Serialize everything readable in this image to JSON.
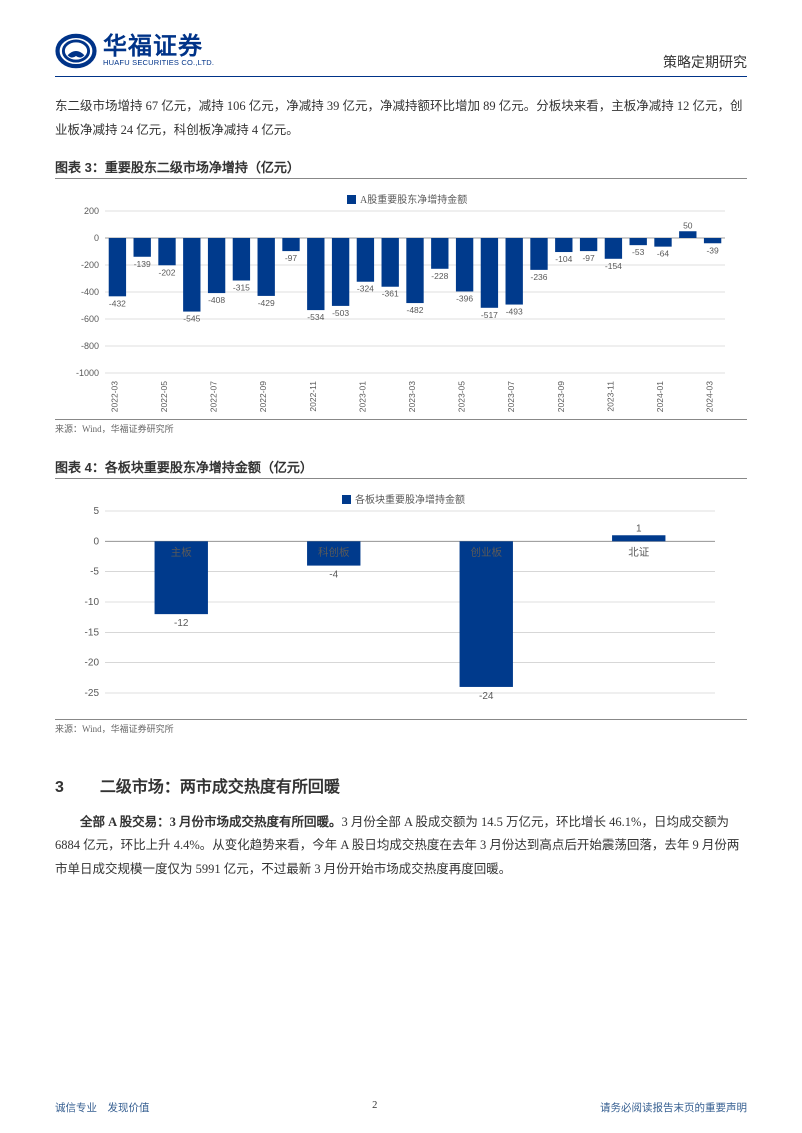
{
  "header": {
    "logo_cn": "华福证券",
    "logo_en": "HUAFU SECURITIES CO.,LTD.",
    "right": "策略定期研究"
  },
  "para1": "东二级市场增持 67 亿元，减持 106 亿元，净减持 39 亿元，净减持额环比增加 89 亿元。分板块来看，主板净减持 12 亿元，创业板净减持 24 亿元，科创板净减持 4 亿元。",
  "chart3": {
    "title": "图表 3：重要股东二级市场净增持（亿元）",
    "legend": "A股重要股东净增持金额",
    "type": "bar",
    "categories": [
      "2022-03",
      "2022-05",
      "2022-07",
      "2022-09",
      "2022-11",
      "2023-01",
      "2023-03",
      "2023-05",
      "2023-07",
      "2023-09",
      "2023-11",
      "2024-01",
      "2024-03"
    ],
    "values_full": [
      -432,
      -139,
      -202,
      -545,
      -408,
      -315,
      -429,
      -97,
      -534,
      -503,
      -324,
      -361,
      -482,
      -228,
      -396,
      -517,
      -493,
      -236,
      -104,
      -97,
      -154,
      -53,
      -64,
      50,
      -39
    ],
    "labels_show": [
      -432,
      -139,
      -202,
      -545,
      -408,
      -315,
      -429,
      -97,
      -534,
      -503,
      -324,
      -361,
      -482,
      -228,
      -396,
      -517,
      -493,
      -236,
      -104,
      -97,
      -154,
      -53,
      -64,
      50,
      -39
    ],
    "ylim": [
      -1000,
      200
    ],
    "ytick_step": 200,
    "bar_color": "#003a8c",
    "grid_color": "#bfbfbf",
    "text_color": "#595959",
    "axis_fontsize": 9,
    "legend_marker_color": "#003a8c",
    "source": "来源：Wind，华福证券研究所"
  },
  "chart4": {
    "title": "图表 4：各板块重要股东净增持金额（亿元）",
    "legend": "各板块重要股净增持金额",
    "type": "bar",
    "categories": [
      "主板",
      "科创板",
      "创业板",
      "北证"
    ],
    "values": [
      -12,
      -4,
      -24,
      1
    ],
    "ylim": [
      -25,
      5
    ],
    "ytick_step": 5,
    "bar_color": "#003a8c",
    "grid_color": "#bfbfbf",
    "text_color": "#595959",
    "axis_fontsize": 10,
    "source": "来源：Wind，华福证券研究所"
  },
  "section": {
    "num": "3",
    "title": "二级市场：两市成交热度有所回暖"
  },
  "para2_bold": "全部 A 股交易：3 月份市场成交热度有所回暖。",
  "para2_rest": "3 月份全部 A 股成交额为 14.5 万亿元，环比增长 46.1%，日均成交额为 6884 亿元，环比上升 4.4%。从变化趋势来看，今年 A 股日均成交热度在去年 3 月份达到高点后开始震荡回落，去年 9 月份两市单日成交规模一度仅为 5991 亿元，不过最新 3 月份开始市场成交热度再度回暖。",
  "footer": {
    "left": "诚信专业　发现价值",
    "page": "2",
    "right": "请务必阅读报告末页的重要声明"
  },
  "colors": {
    "brand": "#003388"
  }
}
